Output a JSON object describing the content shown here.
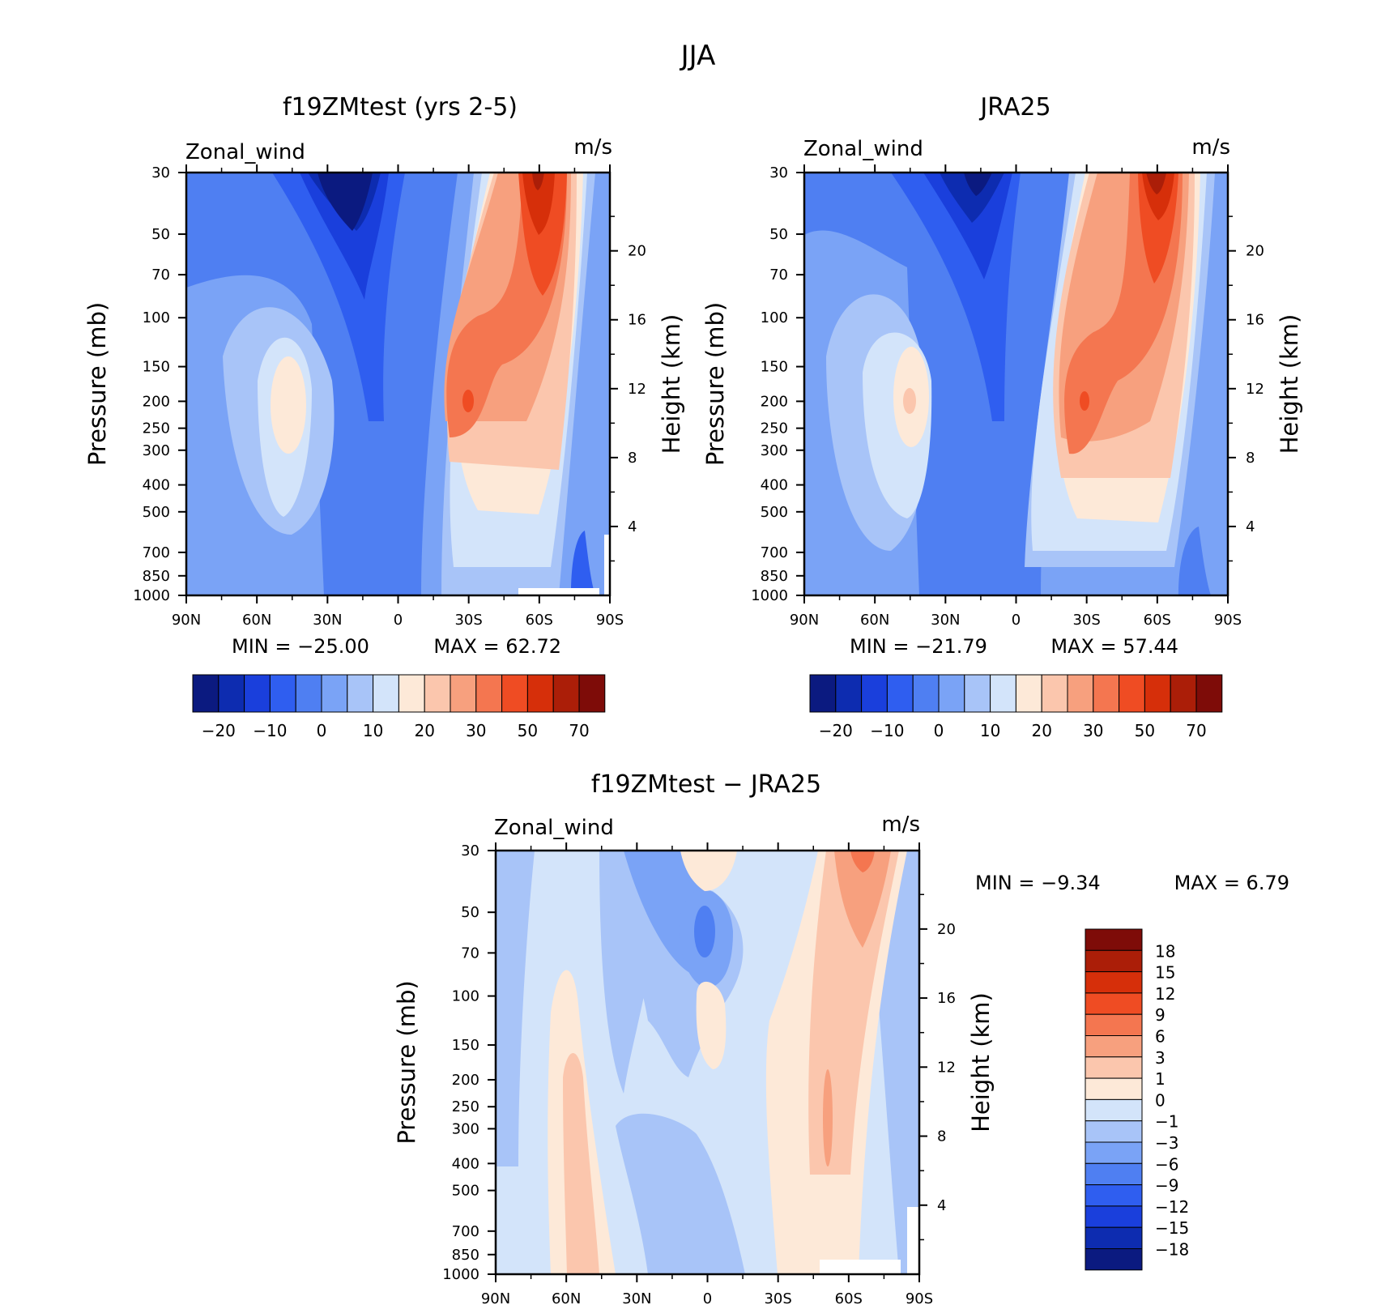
{
  "figure_title": "JJA",
  "colors": {
    "wind_scale": [
      "#0b1a80",
      "#0d2cb0",
      "#1a3fdc",
      "#2f5ef0",
      "#4f7ff2",
      "#7aa3f6",
      "#a8c4f8",
      "#d3e4fa",
      "#fde9d8",
      "#fbc6ad",
      "#f7a07e",
      "#f47650",
      "#ef4c23",
      "#d62f0a",
      "#ab1e08",
      "#7e0c08"
    ],
    "diff_scale": [
      "#0b1a80",
      "#0d2cb0",
      "#1a3fdc",
      "#2f5ef0",
      "#4f7ff2",
      "#7aa3f6",
      "#a8c4f8",
      "#d3e4fa",
      "#fde9d8",
      "#fbc6ad",
      "#f7a07e",
      "#f47650",
      "#ef4c23",
      "#d62f0a",
      "#ab1e08",
      "#7e0c08"
    ]
  },
  "chart_data": [
    {
      "id": "model",
      "type": "contour",
      "title": "f19ZMtest (yrs 2-5)",
      "variable": "Zonal_wind",
      "units": "m/s",
      "ylabel": "Pressure (mb)",
      "y2label": "Height (km)",
      "x_ticks": [
        "90N",
        "60N",
        "30N",
        "0",
        "30S",
        "60S",
        "90S"
      ],
      "x_values": [
        90,
        60,
        30,
        0,
        -30,
        -60,
        -90
      ],
      "pressure_ticks": [
        30,
        50,
        70,
        100,
        150,
        200,
        250,
        300,
        400,
        500,
        700,
        850,
        1000
      ],
      "height_ticks": [
        20,
        16,
        12,
        8,
        4
      ],
      "min_text": "MIN = −25.00",
      "max_text": "MAX = 62.72",
      "min": -25.0,
      "max": 62.72,
      "colorbar_labels": [
        "−20",
        "−10",
        "0",
        "10",
        "20",
        "30",
        "50",
        "70"
      ],
      "features": [
        {
          "lat": 10,
          "p": 30,
          "value": -25
        },
        {
          "lat": -57,
          "p": 40,
          "value": 62.72
        },
        {
          "lat": -30,
          "p": 200,
          "value": 48
        },
        {
          "lat": 45,
          "p": 200,
          "value": 21
        },
        {
          "lat": -50,
          "p": 500,
          "value": 20
        }
      ]
    },
    {
      "id": "obs",
      "type": "contour",
      "title": "JRA25",
      "variable": "Zonal_wind",
      "units": "m/s",
      "ylabel": "Pressure (mb)",
      "y2label": "Height (km)",
      "x_ticks": [
        "90N",
        "60N",
        "30N",
        "0",
        "30S",
        "60S",
        "90S"
      ],
      "x_values": [
        90,
        60,
        30,
        0,
        -30,
        -60,
        -90
      ],
      "pressure_ticks": [
        30,
        50,
        70,
        100,
        150,
        200,
        250,
        300,
        400,
        500,
        700,
        850,
        1000
      ],
      "height_ticks": [
        20,
        16,
        12,
        8,
        4
      ],
      "min_text": "MIN = −21.79",
      "max_text": "MAX = 57.44",
      "min": -21.79,
      "max": 57.44,
      "colorbar_labels": [
        "−20",
        "−10",
        "0",
        "10",
        "20",
        "30",
        "50",
        "70"
      ],
      "features": [
        {
          "lat": 15,
          "p": 30,
          "value": -21.79
        },
        {
          "lat": -60,
          "p": 35,
          "value": 57.44
        },
        {
          "lat": -28,
          "p": 200,
          "value": 45
        },
        {
          "lat": 45,
          "p": 200,
          "value": 21
        },
        {
          "lat": -50,
          "p": 500,
          "value": 20
        }
      ]
    },
    {
      "id": "diff",
      "type": "contour",
      "title": "f19ZMtest − JRA25",
      "variable": "Zonal_wind",
      "units": "m/s",
      "ylabel": "Pressure (mb)",
      "y2label": "Height (km)",
      "x_ticks": [
        "90N",
        "60N",
        "30N",
        "0",
        "30S",
        "60S",
        "90S"
      ],
      "x_values": [
        90,
        60,
        30,
        0,
        -30,
        -60,
        -90
      ],
      "pressure_ticks": [
        30,
        50,
        70,
        100,
        150,
        200,
        250,
        300,
        400,
        500,
        700,
        850,
        1000
      ],
      "height_ticks": [
        20,
        16,
        12,
        8,
        4
      ],
      "min_text": "MIN = −9.34",
      "max_text": "MAX = 6.79",
      "min": -9.34,
      "max": 6.79,
      "colorbar_labels": [
        "18",
        "15",
        "12",
        "9",
        "6",
        "3",
        "1",
        "0",
        "−1",
        "−3",
        "−6",
        "−9",
        "−12",
        "−15",
        "−18"
      ],
      "features": [
        {
          "lat": 0,
          "p": 60,
          "value": -9.34
        },
        {
          "lat": -65,
          "p": 30,
          "value": 6.79
        },
        {
          "lat": -50,
          "p": 250,
          "value": 4
        },
        {
          "lat": 55,
          "p": 400,
          "value": 2
        },
        {
          "lat": 5,
          "p": 150,
          "value": 2
        }
      ]
    }
  ]
}
